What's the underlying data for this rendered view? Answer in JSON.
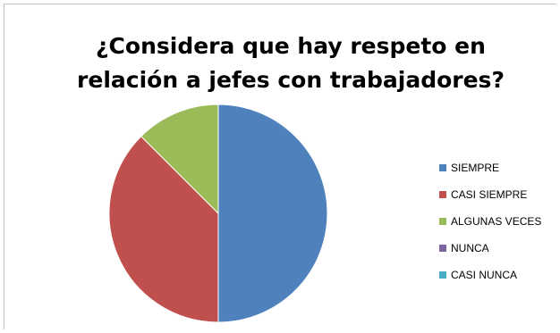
{
  "chart_data": {
    "type": "pie",
    "title": "¿Considera que hay respeto en relación a jefes con trabajadores?",
    "title_lines": [
      "¿Considera que hay respeto en",
      "relación a jefes con trabajadores?"
    ],
    "categories": [
      "SIEMPRE",
      "CASI SIEMPRE",
      "ALGUNAS VECES",
      "NUNCA",
      "CASI NUNCA"
    ],
    "values": [
      50,
      37.5,
      12.5,
      0,
      0
    ],
    "colors": [
      "#4f81bd",
      "#c0504d",
      "#9bbb59",
      "#8064a2",
      "#4bacc6"
    ],
    "legend_position": "right"
  }
}
